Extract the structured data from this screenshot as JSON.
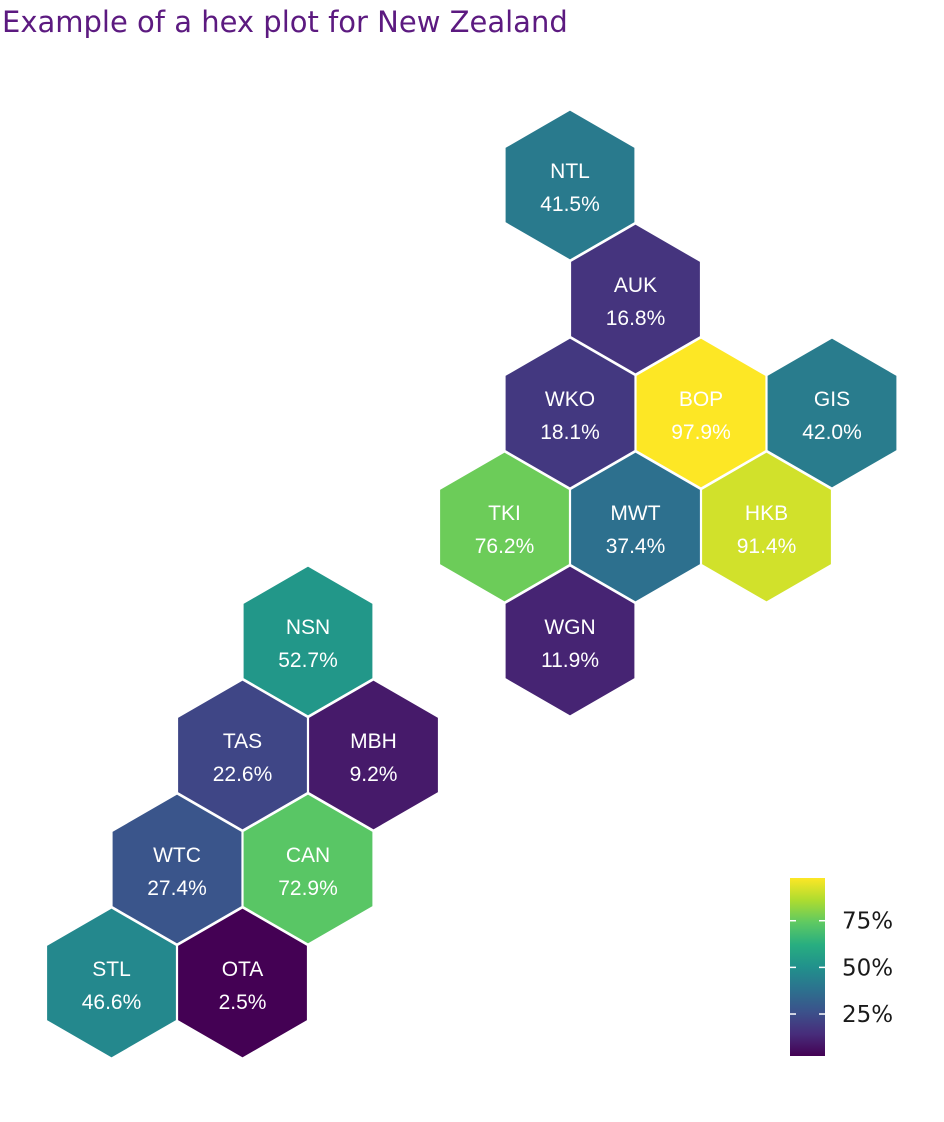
{
  "chart_data": {
    "type": "heatmap",
    "subtype": "hexagon tile map",
    "title": "Example of a hex plot for New Zealand",
    "value_format": "percent",
    "regions": [
      {
        "code": "NTL",
        "value": 41.5,
        "label": "41.5%"
      },
      {
        "code": "AUK",
        "value": 16.8,
        "label": "16.8%"
      },
      {
        "code": "WKO",
        "value": 18.1,
        "label": "18.1%"
      },
      {
        "code": "BOP",
        "value": 97.9,
        "label": "97.9%"
      },
      {
        "code": "GIS",
        "value": 42.0,
        "label": "42.0%"
      },
      {
        "code": "TKI",
        "value": 76.2,
        "label": "76.2%"
      },
      {
        "code": "MWT",
        "value": 37.4,
        "label": "37.4%"
      },
      {
        "code": "HKB",
        "value": 91.4,
        "label": "91.4%"
      },
      {
        "code": "WGN",
        "value": 11.9,
        "label": "11.9%"
      },
      {
        "code": "NSN",
        "value": 52.7,
        "label": "52.7%"
      },
      {
        "code": "TAS",
        "value": 22.6,
        "label": "22.6%"
      },
      {
        "code": "MBH",
        "value": 9.2,
        "label": "9.2%"
      },
      {
        "code": "WTC",
        "value": 27.4,
        "label": "27.4%"
      },
      {
        "code": "CAN",
        "value": 72.9,
        "label": "72.9%"
      },
      {
        "code": "STL",
        "value": 46.6,
        "label": "46.6%"
      },
      {
        "code": "OTA",
        "value": 2.5,
        "label": "2.5%"
      }
    ],
    "color_scale": {
      "palette": "viridis",
      "range": [
        2.5,
        97.9
      ],
      "ticks": [
        25,
        50,
        75
      ],
      "tick_labels": [
        "25%",
        "50%",
        "75%"
      ],
      "legend_position": "bottom-right"
    },
    "colors": {
      "title": "#5c1a80",
      "hex_border": "#ffffff",
      "label_text": "#ffffff"
    }
  }
}
